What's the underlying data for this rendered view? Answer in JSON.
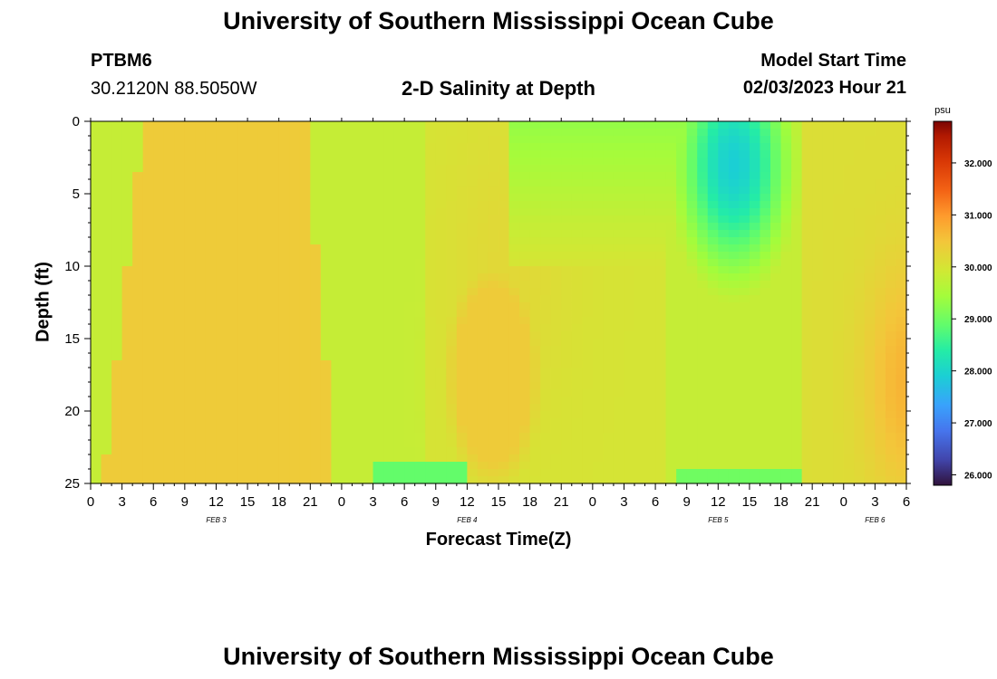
{
  "header": {
    "title": "University of Southern Mississippi Ocean Cube",
    "station_id": "PTBM6",
    "coordinates": "30.2120N  88.5050W",
    "subtitle": "2-D Salinity at Depth",
    "model_start_label": "Model Start Time",
    "model_start_value": "02/03/2023 Hour 21"
  },
  "footer": {
    "title": "University of Southern Mississippi Ocean Cube"
  },
  "chart_data": {
    "type": "heatmap",
    "title": "2-D Salinity at Depth",
    "xlabel": "Forecast Time(Z)",
    "ylabel": "Depth (ft)",
    "colorbar_unit": "psu",
    "colorbar_ticks": [
      "26.000",
      "27.000",
      "28.000",
      "29.000",
      "30.000",
      "31.000",
      "32.000"
    ],
    "colorbar_range": [
      25.8,
      32.8
    ],
    "x_tick_labels": [
      "0",
      "3",
      "6",
      "9",
      "12",
      "15",
      "18",
      "21",
      "0",
      "3",
      "6",
      "9",
      "12",
      "15",
      "18",
      "21",
      "0",
      "3",
      "6",
      "9",
      "12",
      "15",
      "18",
      "21",
      "0",
      "3",
      "6"
    ],
    "day_labels": [
      "FEB 3",
      "FEB 4",
      "FEB 5",
      "FEB 6"
    ],
    "y_tick_labels": [
      "0",
      "5",
      "10",
      "15",
      "20",
      "25"
    ],
    "depth_range_ft": [
      0,
      25
    ],
    "time_range_hours": [
      0,
      78
    ],
    "day_label_hours": [
      12,
      36,
      60,
      75
    ],
    "grid": false
  }
}
